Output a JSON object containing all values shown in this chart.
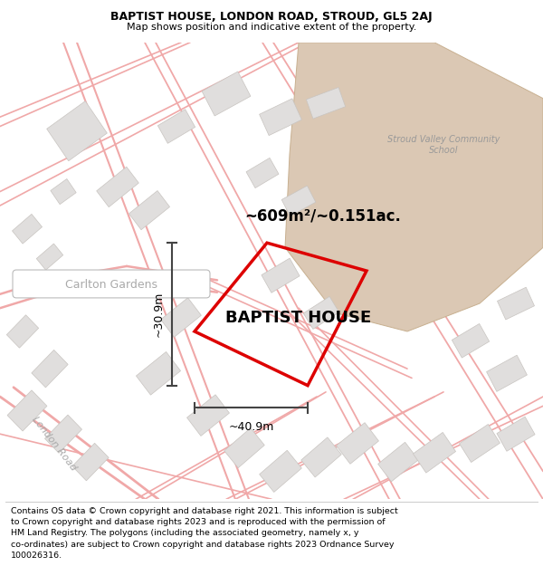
{
  "title_line1": "BAPTIST HOUSE, LONDON ROAD, STROUD, GL5 2AJ",
  "title_line2": "Map shows position and indicative extent of the property.",
  "property_label": "BAPTIST HOUSE",
  "area_label": "~609m²/~0.151ac.",
  "width_label": "~40.9m",
  "height_label": "~30.9m",
  "road_label": "London Road",
  "street_label": "Carlton Gardens",
  "school_label": "Stroud Valley Community\nSchool",
  "footer_lines": [
    "Contains OS data © Crown copyright and database right 2021. This information is subject",
    "to Crown copyright and database rights 2023 and is reproduced with the permission of",
    "HM Land Registry. The polygons (including the associated geometry, namely x, y",
    "co-ordinates) are subject to Crown copyright and database rights 2023 Ordnance Survey",
    "100026316."
  ],
  "bg_color": "#ffffff",
  "map_bg": "#ffffff",
  "plot_color": "#dd0000",
  "building_color": "#e0dedd",
  "building_edge": "#c8c4c0",
  "road_color": "#f0a8a8",
  "school_color": "#dbc8b4",
  "school_edge": "#c8b090",
  "dim_color": "#444444",
  "label_color": "#aaaaaa",
  "title_fontsize": 9,
  "subtitle_fontsize": 8,
  "footer_fontsize": 6.8
}
